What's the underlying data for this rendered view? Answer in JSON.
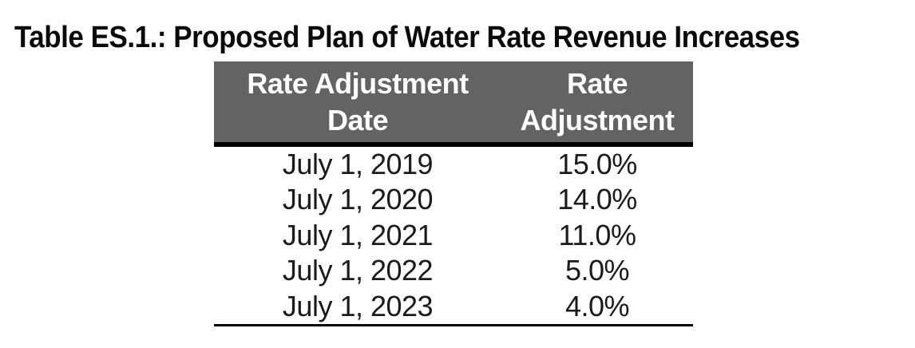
{
  "page": {
    "title": "Table ES.1.: Proposed Plan of Water Rate Revenue Increases"
  },
  "table": {
    "header": {
      "col1_line1": "Rate Adjustment",
      "col1_line2": "Date",
      "col2_line1": "Rate",
      "col2_line2": "Adjustment"
    },
    "rows": [
      {
        "date": "July 1, 2019",
        "rate": "15.0%"
      },
      {
        "date": "July 1, 2020",
        "rate": "14.0%"
      },
      {
        "date": "July 1, 2021",
        "rate": "11.0%"
      },
      {
        "date": "July 1, 2022",
        "rate": "5.0%"
      },
      {
        "date": "July 1, 2023",
        "rate": "4.0%"
      }
    ],
    "colors": {
      "header_bg": "#636363",
      "header_text": "#ffffff",
      "body_text": "#1b1b1b",
      "rule": "#000000"
    }
  }
}
